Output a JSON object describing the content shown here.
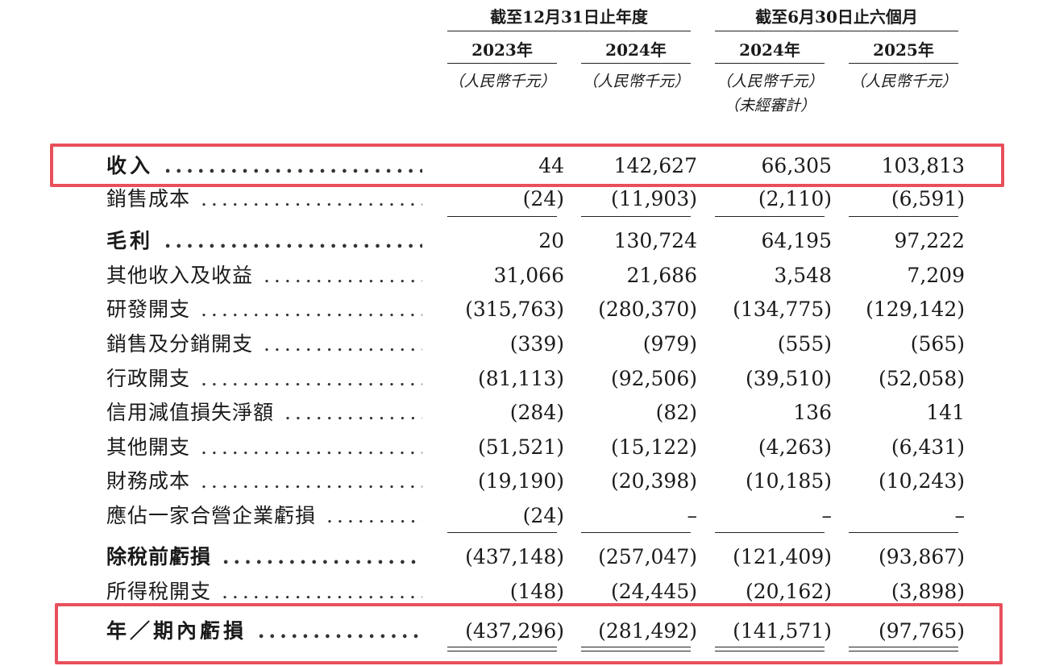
{
  "header": {
    "period_fy": "截至12月31日止年度",
    "period_h1": "截至6月30日止六個月",
    "years": [
      "2023年",
      "2024年",
      "2024年",
      "2025年"
    ],
    "units": [
      "（人民幣千元）",
      "（人民幣千元）",
      "（人民幣千元）",
      "（人民幣千元）"
    ],
    "unaudited": "（未經審計）"
  },
  "rows": [
    {
      "label": "收入",
      "values": [
        "44",
        "142,627",
        "66,305",
        "103,813"
      ]
    },
    {
      "label": "銷售成本",
      "values": [
        "(24)",
        "(11,903)",
        "(2,110)",
        "(6,591)"
      ]
    },
    {
      "label": "毛利",
      "values": [
        "20",
        "130,724",
        "64,195",
        "97,222"
      ]
    },
    {
      "label": "其他收入及收益",
      "values": [
        "31,066",
        "21,686",
        "3,548",
        "7,209"
      ]
    },
    {
      "label": "研發開支",
      "values": [
        "(315,763)",
        "(280,370)",
        "(134,775)",
        "(129,142)"
      ]
    },
    {
      "label": "銷售及分銷開支",
      "values": [
        "(339)",
        "(979)",
        "(555)",
        "(565)"
      ]
    },
    {
      "label": "行政開支",
      "values": [
        "(81,113)",
        "(92,506)",
        "(39,510)",
        "(52,058)"
      ]
    },
    {
      "label": "信用減值損失淨額",
      "values": [
        "(284)",
        "(82)",
        "136",
        "141"
      ]
    },
    {
      "label": "其他開支",
      "values": [
        "(51,521)",
        "(15,122)",
        "(4,263)",
        "(6,431)"
      ]
    },
    {
      "label": "財務成本",
      "values": [
        "(19,190)",
        "(20,398)",
        "(10,185)",
        "(10,243)"
      ]
    },
    {
      "label": "應佔一家合營企業虧損",
      "values": [
        "(24)",
        "–",
        "–",
        "–"
      ]
    },
    {
      "label": "除稅前虧損",
      "values": [
        "(437,148)",
        "(257,047)",
        "(121,409)",
        "(93,867)"
      ]
    },
    {
      "label": "所得稅開支",
      "values": [
        "(148)",
        "(24,445)",
        "(20,162)",
        "(3,898)"
      ]
    },
    {
      "label": "年／期內虧損",
      "values": [
        "(437,296)",
        "(281,492)",
        "(141,571)",
        "(97,765)"
      ]
    }
  ],
  "colors": {
    "highlight": "#e8505b",
    "text": "#1a1a1a"
  }
}
